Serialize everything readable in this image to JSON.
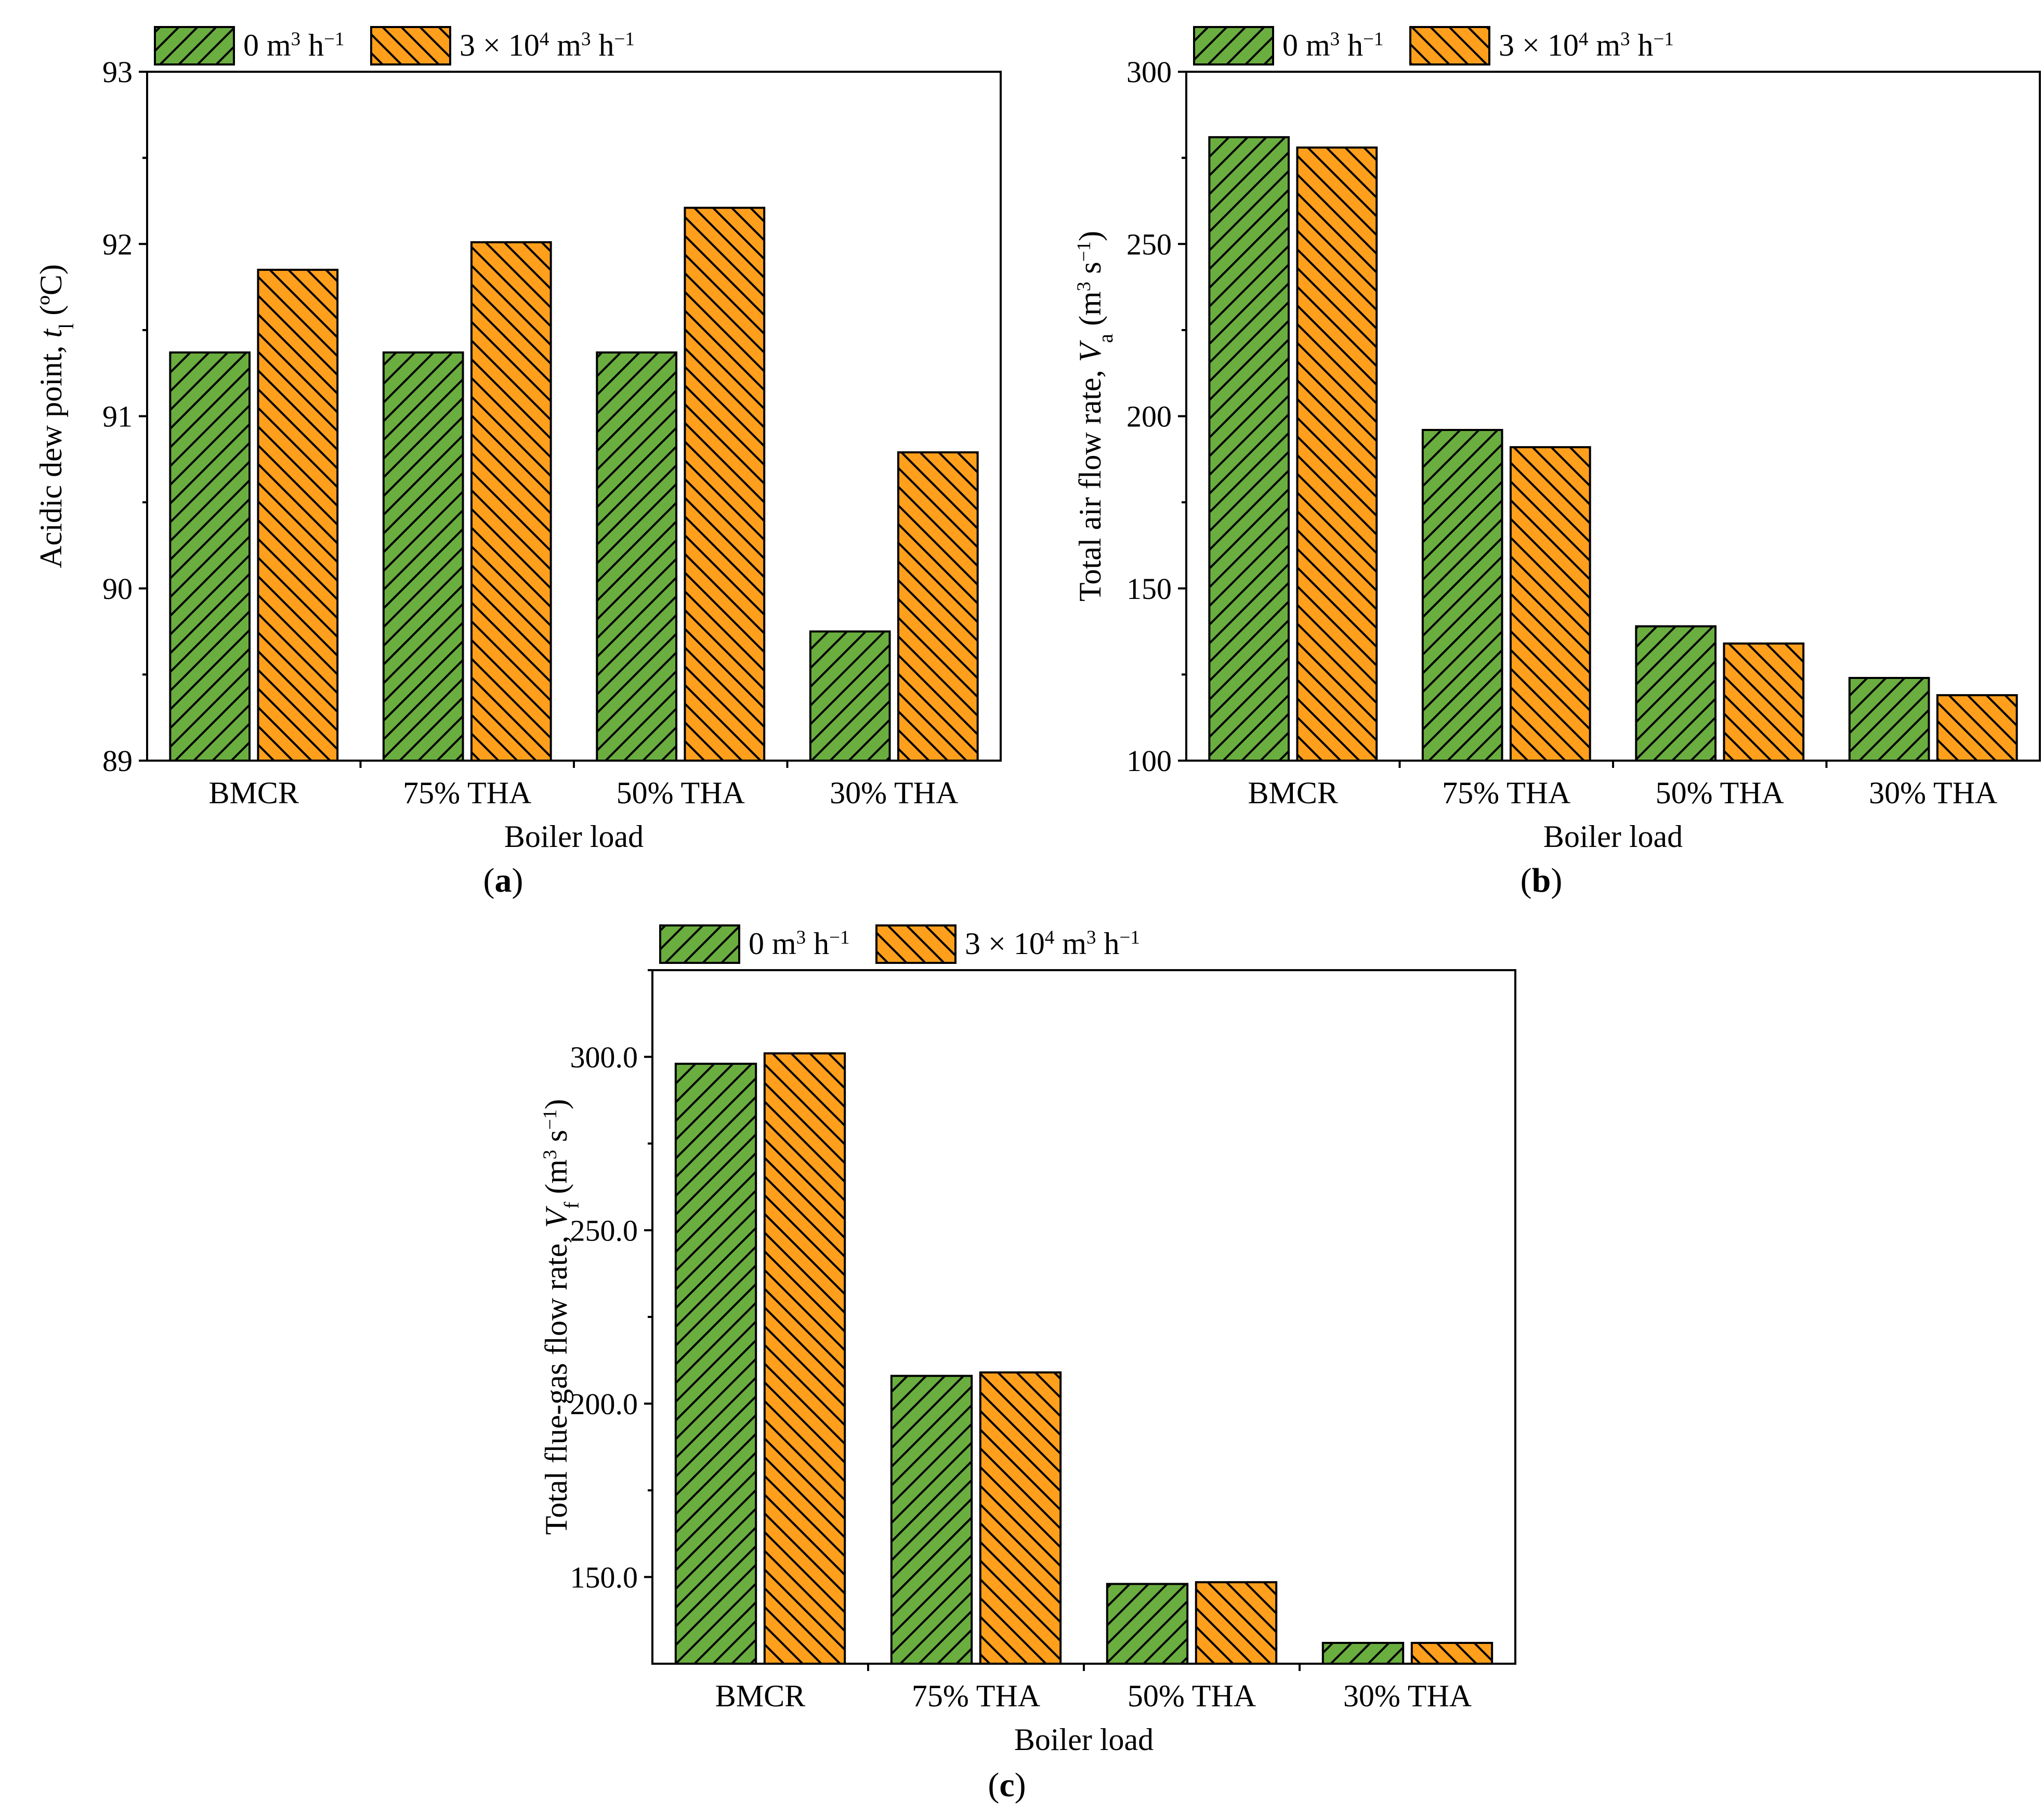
{
  "colors": {
    "series0_fill": "#6aae3f",
    "series1_fill": "#ff9f1c",
    "hatch": "#000000",
    "axis": "#000000"
  },
  "legend": [
    "0 m³ h⁻¹",
    "3 × 10⁴ m³ h⁻¹"
  ],
  "chart_data": [
    {
      "id": "a",
      "type": "bar",
      "panel_label": "a",
      "categories": [
        "BMCR",
        "75% THA",
        "50% THA",
        "30% THA"
      ],
      "series": [
        {
          "name": "0 m³ h⁻¹",
          "values": [
            91.37,
            91.37,
            91.37,
            89.75
          ]
        },
        {
          "name": "3 × 10⁴ m³ h⁻¹",
          "values": [
            91.85,
            92.01,
            92.21,
            90.79
          ]
        }
      ],
      "xlabel": "Boiler load",
      "ylabel_text": "Acidic dew point, ",
      "ylabel_symbol": "t",
      "ylabel_sub": "l",
      "ylabel_unit": " (ºC)",
      "ylim": [
        89,
        93
      ],
      "yticks": [
        89,
        90,
        91,
        92,
        93
      ],
      "ytick_labels": [
        "89",
        "90",
        "91",
        "92",
        "93"
      ],
      "legend_position": "top-left",
      "grid": false
    },
    {
      "id": "b",
      "type": "bar",
      "panel_label": "b",
      "categories": [
        "BMCR",
        "75% THA",
        "50% THA",
        "30% THA"
      ],
      "series": [
        {
          "name": "0 m³ h⁻¹",
          "values": [
            281,
            196,
            139,
            124
          ]
        },
        {
          "name": "3 × 10⁴ m³ h⁻¹",
          "values": [
            278,
            191,
            134,
            119
          ]
        }
      ],
      "xlabel": "Boiler load",
      "ylabel_text": "Total air flow rate, ",
      "ylabel_symbol": "V",
      "ylabel_sub": "a",
      "ylabel_unit": " (m³ s⁻¹)",
      "ylim": [
        100,
        300
      ],
      "yticks": [
        100,
        150,
        200,
        250,
        300
      ],
      "ytick_labels": [
        "100",
        "150",
        "200",
        "250",
        "300"
      ],
      "legend_position": "top-left",
      "grid": false
    },
    {
      "id": "c",
      "type": "bar",
      "panel_label": "c",
      "categories": [
        "BMCR",
        "75% THA",
        "50% THA",
        "30% THA"
      ],
      "series": [
        {
          "name": "0 m³ h⁻¹",
          "values": [
            298,
            208,
            148,
            131
          ]
        },
        {
          "name": "3 × 10⁴ m³ h⁻¹",
          "values": [
            301,
            209,
            148.5,
            131
          ]
        }
      ],
      "xlabel": "Boiler load",
      "ylabel_text": "Total flue-gas flow rate, ",
      "ylabel_symbol": "V",
      "ylabel_sub": "f",
      "ylabel_unit": " (m³ s⁻¹)",
      "ylim": [
        125,
        325
      ],
      "yticks": [
        150,
        200,
        250,
        300
      ],
      "ytick_labels": [
        "150.0",
        "200.0",
        "250.0",
        "300.0"
      ],
      "legend_position": "top-left",
      "grid": false
    }
  ]
}
